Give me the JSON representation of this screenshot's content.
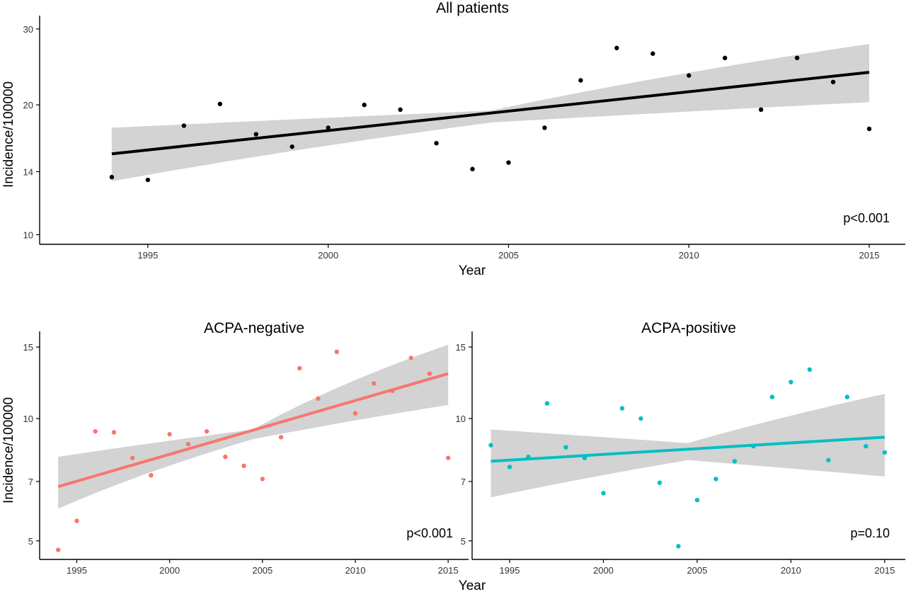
{
  "figure": {
    "xlabel": "Year",
    "ylabel": "Incidence/100000"
  },
  "chart_data": [
    {
      "type": "scatter",
      "title": "All patients",
      "xlabel": "Year",
      "ylabel": "Incidence/100000",
      "xlim": [
        1992.0,
        2016.0
      ],
      "ylim": [
        9.5,
        31.5
      ],
      "y_scale": "log",
      "y_ticks": [
        10,
        14,
        20,
        30
      ],
      "x_ticks": [
        1995,
        2000,
        2005,
        2010,
        2015
      ],
      "annotation": "p<0.001",
      "color": "#000000",
      "points": {
        "x": [
          1994,
          1995,
          1996,
          1997,
          1998,
          1999,
          2000,
          2001,
          2002,
          2003,
          2004,
          2005,
          2006,
          2007,
          2008,
          2009,
          2010,
          2011,
          2012,
          2013,
          2014,
          2015
        ],
        "y": [
          13.6,
          13.4,
          17.9,
          20.1,
          17.1,
          16.0,
          17.7,
          20.0,
          19.5,
          16.3,
          14.2,
          14.7,
          17.7,
          22.8,
          27.1,
          26.3,
          23.4,
          25.7,
          19.5,
          25.7,
          22.6,
          17.6
        ]
      },
      "trend": {
        "x": [
          1994,
          2015
        ],
        "y": [
          15.4,
          23.8
        ]
      },
      "ci_band": {
        "x": [
          1994,
          2004.5,
          2015
        ],
        "lower": [
          13.3,
          18.2,
          20.3
        ],
        "upper": [
          17.7,
          19.4,
          27.7
        ]
      },
      "grid": false,
      "legend": "none"
    },
    {
      "type": "scatter",
      "title": "ACPA-negative",
      "xlabel": "",
      "ylabel": "Incidence/100000",
      "xlim": [
        1993.0,
        2016.1
      ],
      "ylim": [
        4.5,
        16.0
      ],
      "y_scale": "log",
      "y_ticks": [
        5,
        7,
        10,
        15
      ],
      "x_ticks": [
        1995,
        2000,
        2005,
        2010,
        2015
      ],
      "annotation": "p<0.001",
      "color": "#F8766D",
      "points": {
        "x": [
          1994,
          1995,
          1996,
          1997,
          1998,
          1999,
          2000,
          2001,
          2002,
          2003,
          2004,
          2005,
          2006,
          2007,
          2008,
          2009,
          2010,
          2011,
          2012,
          2013,
          2014,
          2015
        ],
        "y": [
          4.75,
          5.6,
          9.3,
          9.25,
          8.0,
          7.25,
          9.15,
          8.65,
          9.3,
          8.05,
          7.65,
          7.1,
          9.0,
          13.3,
          11.2,
          14.6,
          10.3,
          12.2,
          11.7,
          14.1,
          12.9,
          8.0
        ]
      },
      "trend": {
        "x": [
          1994,
          2015
        ],
        "y": [
          6.8,
          12.9
        ]
      },
      "ci_band": {
        "x": [
          1994,
          2004.5,
          2015
        ],
        "lower": [
          6.0,
          8.9,
          10.8
        ],
        "upper": [
          8.05,
          9.4,
          15.2
        ]
      },
      "grid": false,
      "legend": "none"
    },
    {
      "type": "scatter",
      "title": "ACPA-positive",
      "xlabel": "",
      "ylabel": "",
      "xlim": [
        1993.0,
        2016.1
      ],
      "ylim": [
        4.5,
        16.0
      ],
      "y_scale": "log",
      "y_ticks": [
        5,
        7,
        10,
        15
      ],
      "x_ticks": [
        1995,
        2000,
        2005,
        2010,
        2015
      ],
      "annotation": "p=0.10",
      "color": "#00BFC4",
      "points": {
        "x": [
          1994,
          1995,
          1996,
          1997,
          1998,
          1999,
          2000,
          2001,
          2002,
          2003,
          2004,
          2005,
          2006,
          2007,
          2008,
          2009,
          2010,
          2011,
          2012,
          2013,
          2014,
          2015
        ],
        "y": [
          8.6,
          7.6,
          8.05,
          10.9,
          8.5,
          8.0,
          6.55,
          10.6,
          10.0,
          6.95,
          4.85,
          6.3,
          7.1,
          7.85,
          8.55,
          11.3,
          12.3,
          13.2,
          7.9,
          11.3,
          8.55,
          8.25
        ]
      },
      "trend": {
        "x": [
          1994,
          2015
        ],
        "y": [
          7.85,
          9.0
        ]
      },
      "ci_band": {
        "x": [
          1994,
          2004.5,
          2015
        ],
        "lower": [
          6.4,
          7.9,
          7.2
        ],
        "upper": [
          9.4,
          8.7,
          11.5
        ]
      },
      "grid": false,
      "legend": "none"
    }
  ]
}
